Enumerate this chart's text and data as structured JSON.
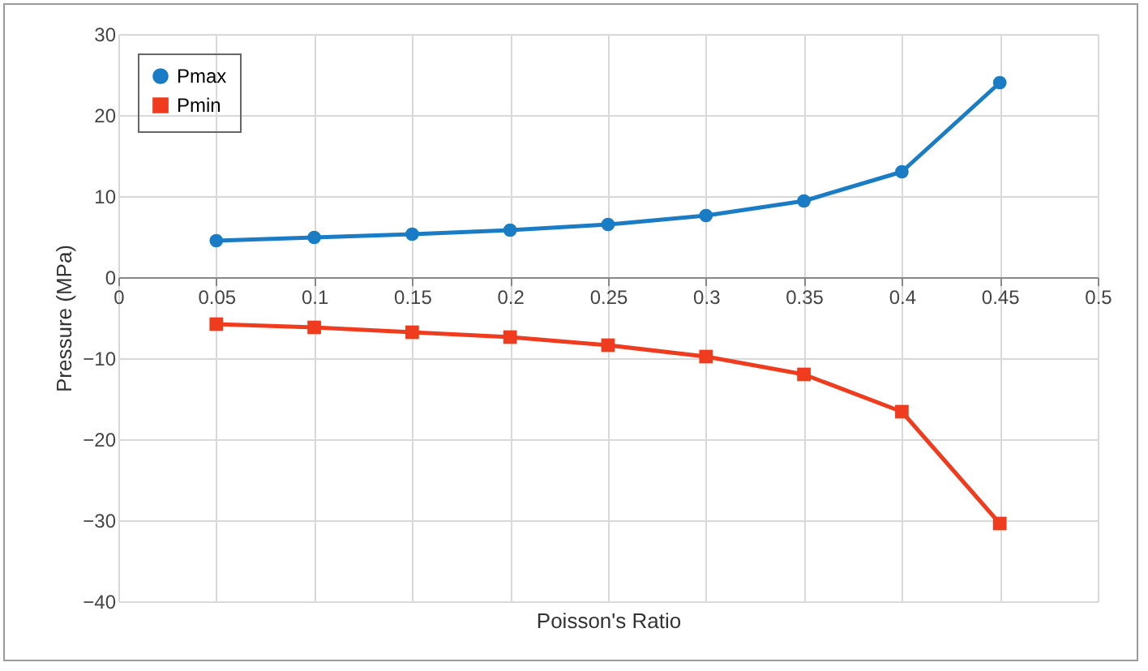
{
  "chart_data": {
    "type": "line",
    "xlabel": "Poisson's Ratio",
    "ylabel": "Pressure (MPa)",
    "x": [
      0.05,
      0.1,
      0.15,
      0.2,
      0.25,
      0.3,
      0.35,
      0.4,
      0.45
    ],
    "series": [
      {
        "name": "Pmax",
        "color": "#1a7cc4",
        "marker": "circle",
        "values": [
          4.5,
          4.9,
          5.3,
          5.8,
          6.5,
          7.6,
          9.4,
          13.0,
          24.0
        ]
      },
      {
        "name": "Pmin",
        "color": "#f03c1e",
        "marker": "square",
        "values": [
          -5.8,
          -6.2,
          -6.8,
          -7.4,
          -8.4,
          -9.8,
          -12.0,
          -16.6,
          -30.4
        ]
      }
    ],
    "xlim": [
      0,
      0.5
    ],
    "xticks": [
      0,
      0.05,
      {
        "value": 0.1,
        "label": "0.1"
      },
      0.15,
      {
        "value": 0.2,
        "label": "0.2"
      },
      0.25,
      {
        "value": 0.3,
        "label": "0.3"
      },
      0.35,
      {
        "value": 0.4,
        "label": "0.4"
      },
      0.45,
      {
        "value": 0.5,
        "label": "0.5"
      }
    ],
    "ylim": [
      -40,
      30
    ],
    "yticks": [
      -40,
      -30,
      -20,
      -10,
      0,
      10,
      20,
      30
    ],
    "grid": true,
    "legend": "top left",
    "line_style": "solid"
  }
}
